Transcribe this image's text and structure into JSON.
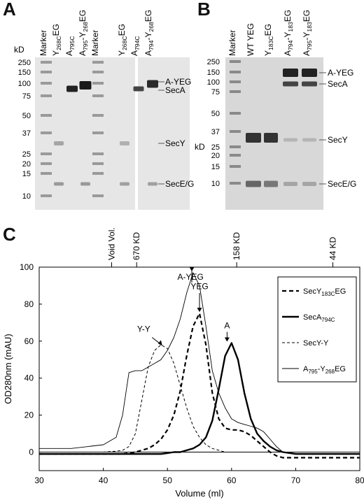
{
  "panel_a": {
    "label": "A",
    "kd_label": "kD",
    "markers": [
      "250",
      "150",
      "100",
      "75",
      "50",
      "37",
      "25",
      "20",
      "15",
      "10"
    ],
    "lanes": [
      {
        "main": "Marker",
        "sub": "",
        "rest": ""
      },
      {
        "main": "Y",
        "sub": "268C",
        "rest": "EG"
      },
      {
        "main": "A",
        "sub": "795C",
        "rest": ""
      },
      {
        "main": "A",
        "sub": "795",
        "rest": "-Y",
        "sub2": "268",
        "rest2": "EG"
      },
      {
        "main": "Marker",
        "sub": "",
        "rest": ""
      },
      {
        "main": "Y",
        "sub": "268C",
        "rest": "EG"
      },
      {
        "main": "A",
        "sub": "794C",
        "rest": ""
      },
      {
        "main": "A",
        "sub": "794",
        "rest": "-Y",
        "sub2": "268",
        "rest2": "EG"
      }
    ],
    "band_labels": [
      "A-YEG",
      "SecA",
      "SecY",
      "SecE/G"
    ]
  },
  "panel_b": {
    "label": "B",
    "kd_label": "kD",
    "markers": [
      "250",
      "150",
      "100",
      "75",
      "50",
      "37",
      "25",
      "20",
      "15",
      "10"
    ],
    "lanes": [
      {
        "main": "Marker",
        "sub": "",
        "rest": ""
      },
      {
        "main": "WT YEG",
        "sub": "",
        "rest": ""
      },
      {
        "main": "Y",
        "sub": "183C",
        "rest": "EG"
      },
      {
        "main": "A",
        "sub": "794",
        "rest": "-Y",
        "sub2": "183",
        "rest2": "EG"
      },
      {
        "main": "A",
        "sub": "795",
        "rest": "-Y",
        "sub2": "183",
        "rest2": "EG"
      }
    ],
    "band_labels": [
      "A-YEG",
      "SecA",
      "SecY",
      "SecE/G"
    ]
  },
  "panel_c": {
    "label": "C",
    "top_markers": [
      "Void Vol.",
      "670 KD",
      "158 KD",
      "44 KD"
    ],
    "peak_labels": [
      "A-YEG",
      "YEG",
      "Y-Y",
      "A"
    ],
    "legend": [
      {
        "label": "SecY",
        "sub": "183C",
        "rest": "EG",
        "style": "dashed-thick"
      },
      {
        "label": "SecA",
        "sub": "794C",
        "rest": "",
        "style": "solid-thick"
      },
      {
        "label": "SecY-Y",
        "sub": "",
        "rest": "",
        "style": "dashed-thin"
      },
      {
        "label": "A",
        "sub": "795",
        "rest": "-Y",
        "sub2": "268",
        "rest2": "EG",
        "style": "solid-thin"
      }
    ]
  },
  "chart_data": {
    "type": "line",
    "xlabel": "Volume (ml)",
    "ylabel": "OD280nm (mAU)",
    "xlim": [
      30,
      80
    ],
    "ylim": [
      -10,
      100
    ],
    "x_ticks": [
      "30",
      "40",
      "50",
      "60",
      "70",
      "80"
    ],
    "y_ticks": [
      "0",
      "20",
      "40",
      "60",
      "80",
      "100"
    ],
    "x": [
      30,
      35,
      40,
      42,
      43,
      44,
      45,
      46,
      47,
      48,
      49,
      50,
      51,
      52,
      53,
      54,
      55,
      56,
      57,
      58,
      59,
      60,
      61,
      62,
      63,
      64,
      65,
      66,
      67,
      68,
      70,
      75,
      80
    ],
    "series": [
      {
        "name": "SecY183CEG",
        "values": [
          -1,
          -1,
          -1,
          -1,
          -1,
          -0.5,
          0,
          1,
          2,
          4,
          7,
          12,
          20,
          33,
          52,
          68,
          75,
          58,
          32,
          18,
          13,
          12,
          12,
          11,
          9,
          6,
          3,
          0,
          -2,
          -3,
          -3,
          -3,
          -3
        ]
      },
      {
        "name": "SecA794C",
        "values": [
          -1,
          -1,
          -1,
          -1,
          -1,
          -1,
          -1,
          -1,
          -1,
          -1,
          -1,
          -0.5,
          0,
          0,
          1,
          2,
          4,
          8,
          17,
          34,
          52,
          59,
          50,
          32,
          18,
          10,
          6,
          3,
          1,
          0,
          -1,
          -1,
          -1
        ]
      },
      {
        "name": "SecY-Y",
        "values": [
          0,
          0,
          0,
          0.5,
          1,
          3,
          10,
          28,
          46,
          55,
          58,
          56,
          48,
          36,
          24,
          14,
          8,
          4,
          2,
          1,
          0,
          0,
          0,
          0,
          0,
          0,
          0,
          0,
          0,
          0,
          0,
          0,
          0
        ]
      },
      {
        "name": "A795-Y268EG",
        "values": [
          2,
          2,
          4,
          8,
          20,
          43,
          44,
          44,
          46,
          48,
          50,
          55,
          62,
          72,
          86,
          97,
          90,
          68,
          44,
          32,
          24,
          18,
          16,
          15,
          14,
          13,
          11,
          7,
          3,
          0,
          -1,
          -1,
          -1
        ]
      }
    ]
  }
}
